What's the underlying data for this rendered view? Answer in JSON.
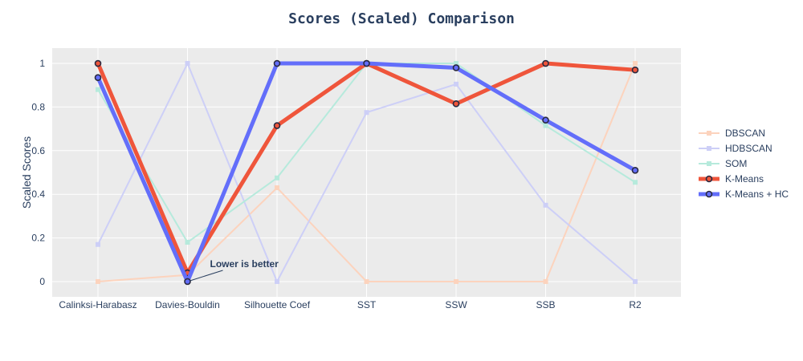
{
  "chart_data": {
    "type": "line",
    "title": "Scores (Scaled) Comparison",
    "xlabel": "",
    "ylabel": "Scaled Scores",
    "categories": [
      "Calinksi-Harabasz",
      "Davies-Bouldin",
      "Silhouette Coef",
      "SST",
      "SSW",
      "SSB",
      "R2"
    ],
    "ylim": [
      -0.07,
      1.07
    ],
    "yticks": [
      0,
      0.2,
      0.4,
      0.6,
      0.8,
      1
    ],
    "ytick_labels": [
      "0",
      "0.2",
      "0.4",
      "0.6",
      "0.8",
      "1"
    ],
    "grid": true,
    "legend_position": "right",
    "background_color": "#ebebeb",
    "title_color": "#2a3f5f",
    "series": [
      {
        "name": "DBSCAN",
        "color": "#fcd3bd",
        "emphasis": false,
        "values": [
          0,
          0.03,
          0.43,
          0,
          0,
          0,
          1
        ]
      },
      {
        "name": "HDBSCAN",
        "color": "#cdcff7",
        "emphasis": false,
        "values": [
          0.17,
          1,
          0,
          0.775,
          0.905,
          0.35,
          0
        ]
      },
      {
        "name": "SOM",
        "color": "#b6eadc",
        "emphasis": false,
        "values": [
          0.88,
          0.18,
          0.475,
          1,
          1,
          0.715,
          0.455
        ]
      },
      {
        "name": "K-Means",
        "color": "#ef553b",
        "emphasis": true,
        "values": [
          1,
          0.04,
          0.715,
          1,
          0.815,
          1,
          0.97
        ]
      },
      {
        "name": "K-Means + HC",
        "color": "#636efa",
        "emphasis": true,
        "values": [
          0.935,
          0,
          1,
          1,
          0.98,
          0.74,
          0.51
        ]
      }
    ],
    "annotations": [
      {
        "text": "Lower is better",
        "category": "Davies-Bouldin",
        "value": 0
      }
    ]
  }
}
